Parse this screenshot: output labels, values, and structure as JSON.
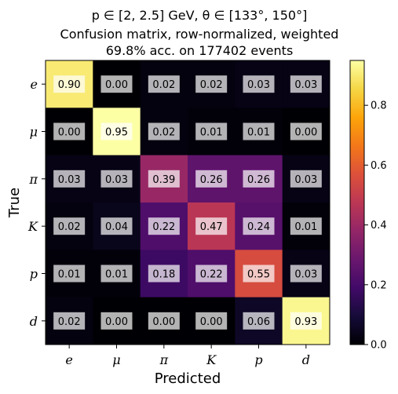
{
  "chart_data": {
    "type": "heatmap",
    "title_lines": [
      "p ∈ [2, 2.5] GeV, θ ∈ [133°, 150°]",
      "Confusion matrix, row-normalized, weighted",
      "69.8% acc. on 177402 events"
    ],
    "xlabel": "Predicted",
    "ylabel": "True",
    "x_categories": [
      "e",
      "μ",
      "π",
      "K",
      "p",
      "d"
    ],
    "y_categories": [
      "e",
      "μ",
      "π",
      "K",
      "p",
      "d"
    ],
    "values": [
      [
        0.9,
        0.0,
        0.02,
        0.02,
        0.03,
        0.03
      ],
      [
        0.0,
        0.95,
        0.02,
        0.01,
        0.01,
        0.0
      ],
      [
        0.03,
        0.03,
        0.39,
        0.26,
        0.26,
        0.03
      ],
      [
        0.02,
        0.04,
        0.22,
        0.47,
        0.24,
        0.01
      ],
      [
        0.01,
        0.01,
        0.18,
        0.22,
        0.55,
        0.03
      ],
      [
        0.02,
        0.0,
        0.0,
        0.0,
        0.06,
        0.93
      ]
    ],
    "cell_labels": [
      [
        "0.90",
        "0.00",
        "0.02",
        "0.02",
        "0.03",
        "0.03"
      ],
      [
        "0.00",
        "0.95",
        "0.02",
        "0.01",
        "0.01",
        "0.00"
      ],
      [
        "0.03",
        "0.03",
        "0.39",
        "0.26",
        "0.26",
        "0.03"
      ],
      [
        "0.02",
        "0.04",
        "0.22",
        "0.47",
        "0.24",
        "0.01"
      ],
      [
        "0.01",
        "0.01",
        "0.18",
        "0.22",
        "0.55",
        "0.03"
      ],
      [
        "0.02",
        "0.00",
        "0.00",
        "0.00",
        "0.06",
        "0.93"
      ]
    ],
    "colormap": "inferno",
    "vmin": 0.0,
    "vmax": 0.95,
    "colorbar_ticks": [
      0.0,
      0.2,
      0.4,
      0.6,
      0.8
    ],
    "colorbar_tick_labels": [
      "0.0",
      "0.2",
      "0.4",
      "0.6",
      "0.8"
    ],
    "grid": false
  }
}
